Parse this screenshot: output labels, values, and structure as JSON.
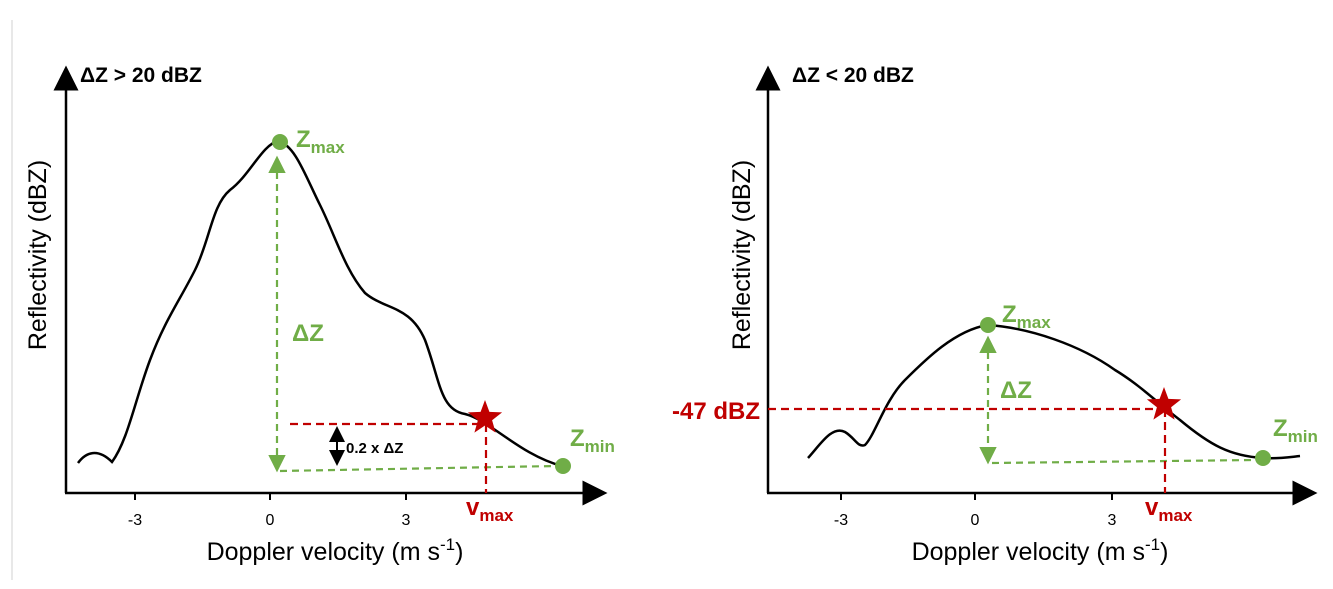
{
  "panels": [
    {
      "title": "ΔZ > 20 dBZ",
      "y_label": "Reflectivity (dBZ)",
      "x_label": {
        "main": "Doppler velocity (m s",
        "sup": "-1",
        "end": ")"
      },
      "ticks": [
        "-3",
        "0",
        "3"
      ],
      "z_max": {
        "main": "Z",
        "sub": "max"
      },
      "delta_z": "ΔZ",
      "fraction_label": "0.2 x ΔZ",
      "v_max": {
        "main": "v",
        "sub": "max"
      },
      "z_min": {
        "main": "Z",
        "sub": "min"
      }
    },
    {
      "title": "ΔZ < 20 dBZ",
      "y_label": "Reflectivity (dBZ)",
      "x_label": {
        "main": "Doppler velocity (m s",
        "sup": "-1",
        "end": ")"
      },
      "ticks": [
        "-3",
        "0",
        "3"
      ],
      "z_max": {
        "main": "Z",
        "sub": "max"
      },
      "delta_z": "ΔZ",
      "threshold_label": "-47 dBZ",
      "v_max": {
        "main": "v",
        "sub": "max"
      },
      "z_min": {
        "main": "Z",
        "sub": "min"
      }
    }
  ]
}
